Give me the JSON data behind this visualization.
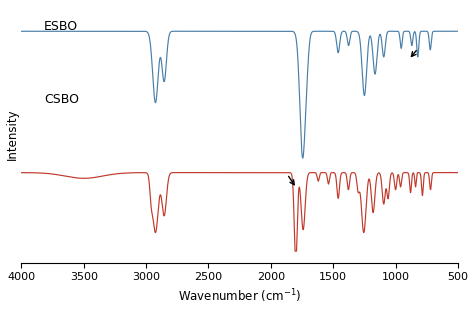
{
  "xlabel": "Wavenumber (cm$^{-1}$)",
  "ylabel": "Intensity",
  "esbo_label": "ESBO",
  "csbo_label": "CSBO",
  "esbo_color": "#4a7fa8",
  "csbo_color": "#c0392b",
  "xmin": 500,
  "xmax": 4000,
  "background_color": "#ffffff"
}
